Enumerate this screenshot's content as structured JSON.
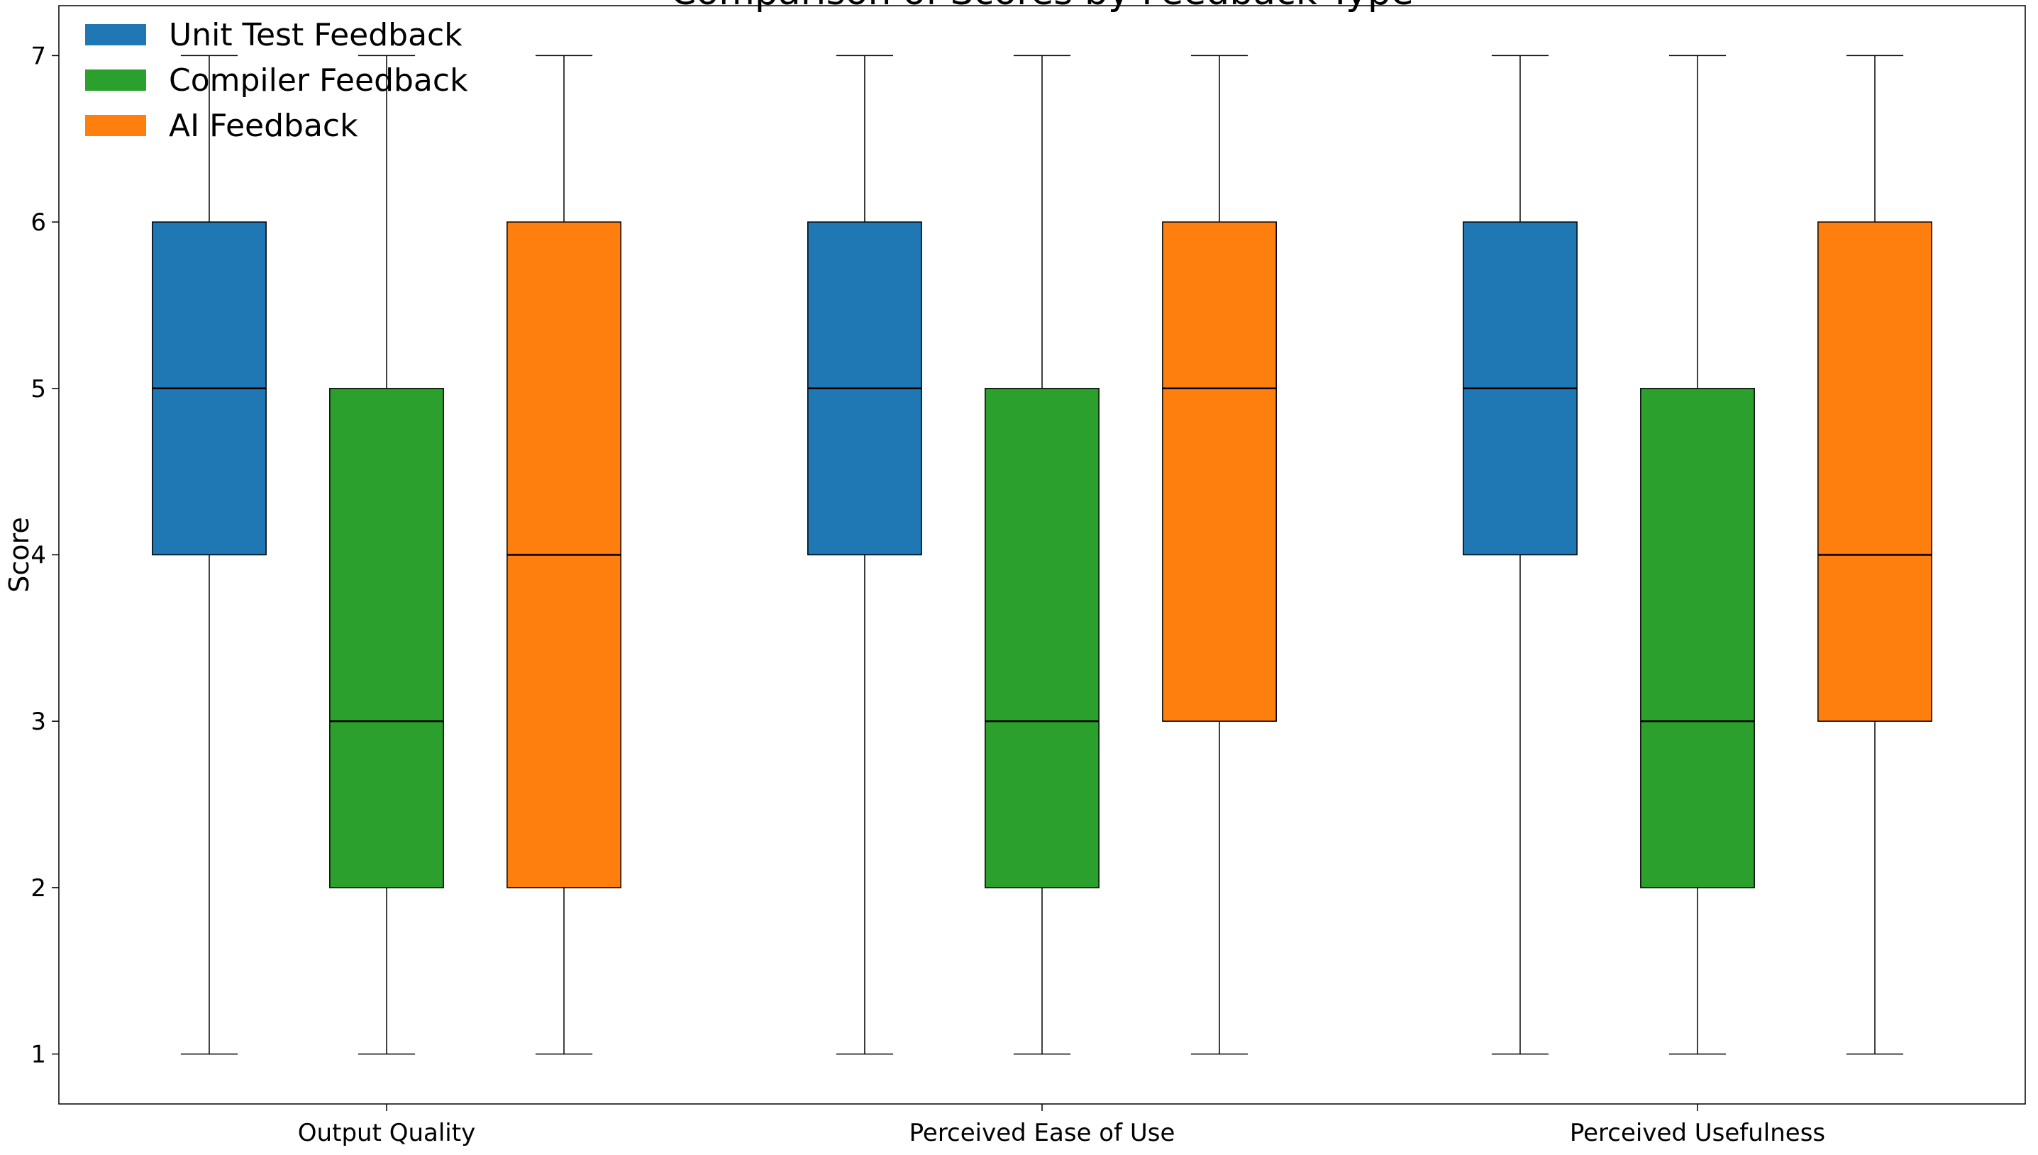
{
  "chart_data": {
    "type": "box",
    "title": "Comparison of Scores by Feedback Type",
    "xlabel": "",
    "ylabel": "Score",
    "ylim": [
      0.7,
      7.3
    ],
    "yticks": [
      1,
      2,
      3,
      4,
      5,
      6,
      7
    ],
    "grid": false,
    "legend_position": "upper left",
    "categories": [
      "Output Quality",
      "Perceived Ease of Use",
      "Perceived Usefulness"
    ],
    "series": [
      {
        "name": "Unit Test Feedback",
        "color": "#1f77b4",
        "boxes": [
          {
            "min": 1,
            "q1": 4,
            "median": 5,
            "q3": 6,
            "max": 7
          },
          {
            "min": 1,
            "q1": 4,
            "median": 5,
            "q3": 6,
            "max": 7
          },
          {
            "min": 1,
            "q1": 4,
            "median": 5,
            "q3": 6,
            "max": 7
          }
        ]
      },
      {
        "name": "Compiler Feedback",
        "color": "#2ca02c",
        "boxes": [
          {
            "min": 1,
            "q1": 2,
            "median": 3,
            "q3": 5,
            "max": 7
          },
          {
            "min": 1,
            "q1": 2,
            "median": 3,
            "q3": 5,
            "max": 7
          },
          {
            "min": 1,
            "q1": 2,
            "median": 3,
            "q3": 5,
            "max": 7
          }
        ]
      },
      {
        "name": "AI Feedback",
        "color": "#ff7f0e",
        "boxes": [
          {
            "min": 1,
            "q1": 2,
            "median": 4,
            "q3": 6,
            "max": 7
          },
          {
            "min": 1,
            "q1": 3,
            "median": 5,
            "q3": 6,
            "max": 7
          },
          {
            "min": 1,
            "q1": 3,
            "median": 4,
            "q3": 6,
            "max": 7
          }
        ]
      }
    ]
  }
}
